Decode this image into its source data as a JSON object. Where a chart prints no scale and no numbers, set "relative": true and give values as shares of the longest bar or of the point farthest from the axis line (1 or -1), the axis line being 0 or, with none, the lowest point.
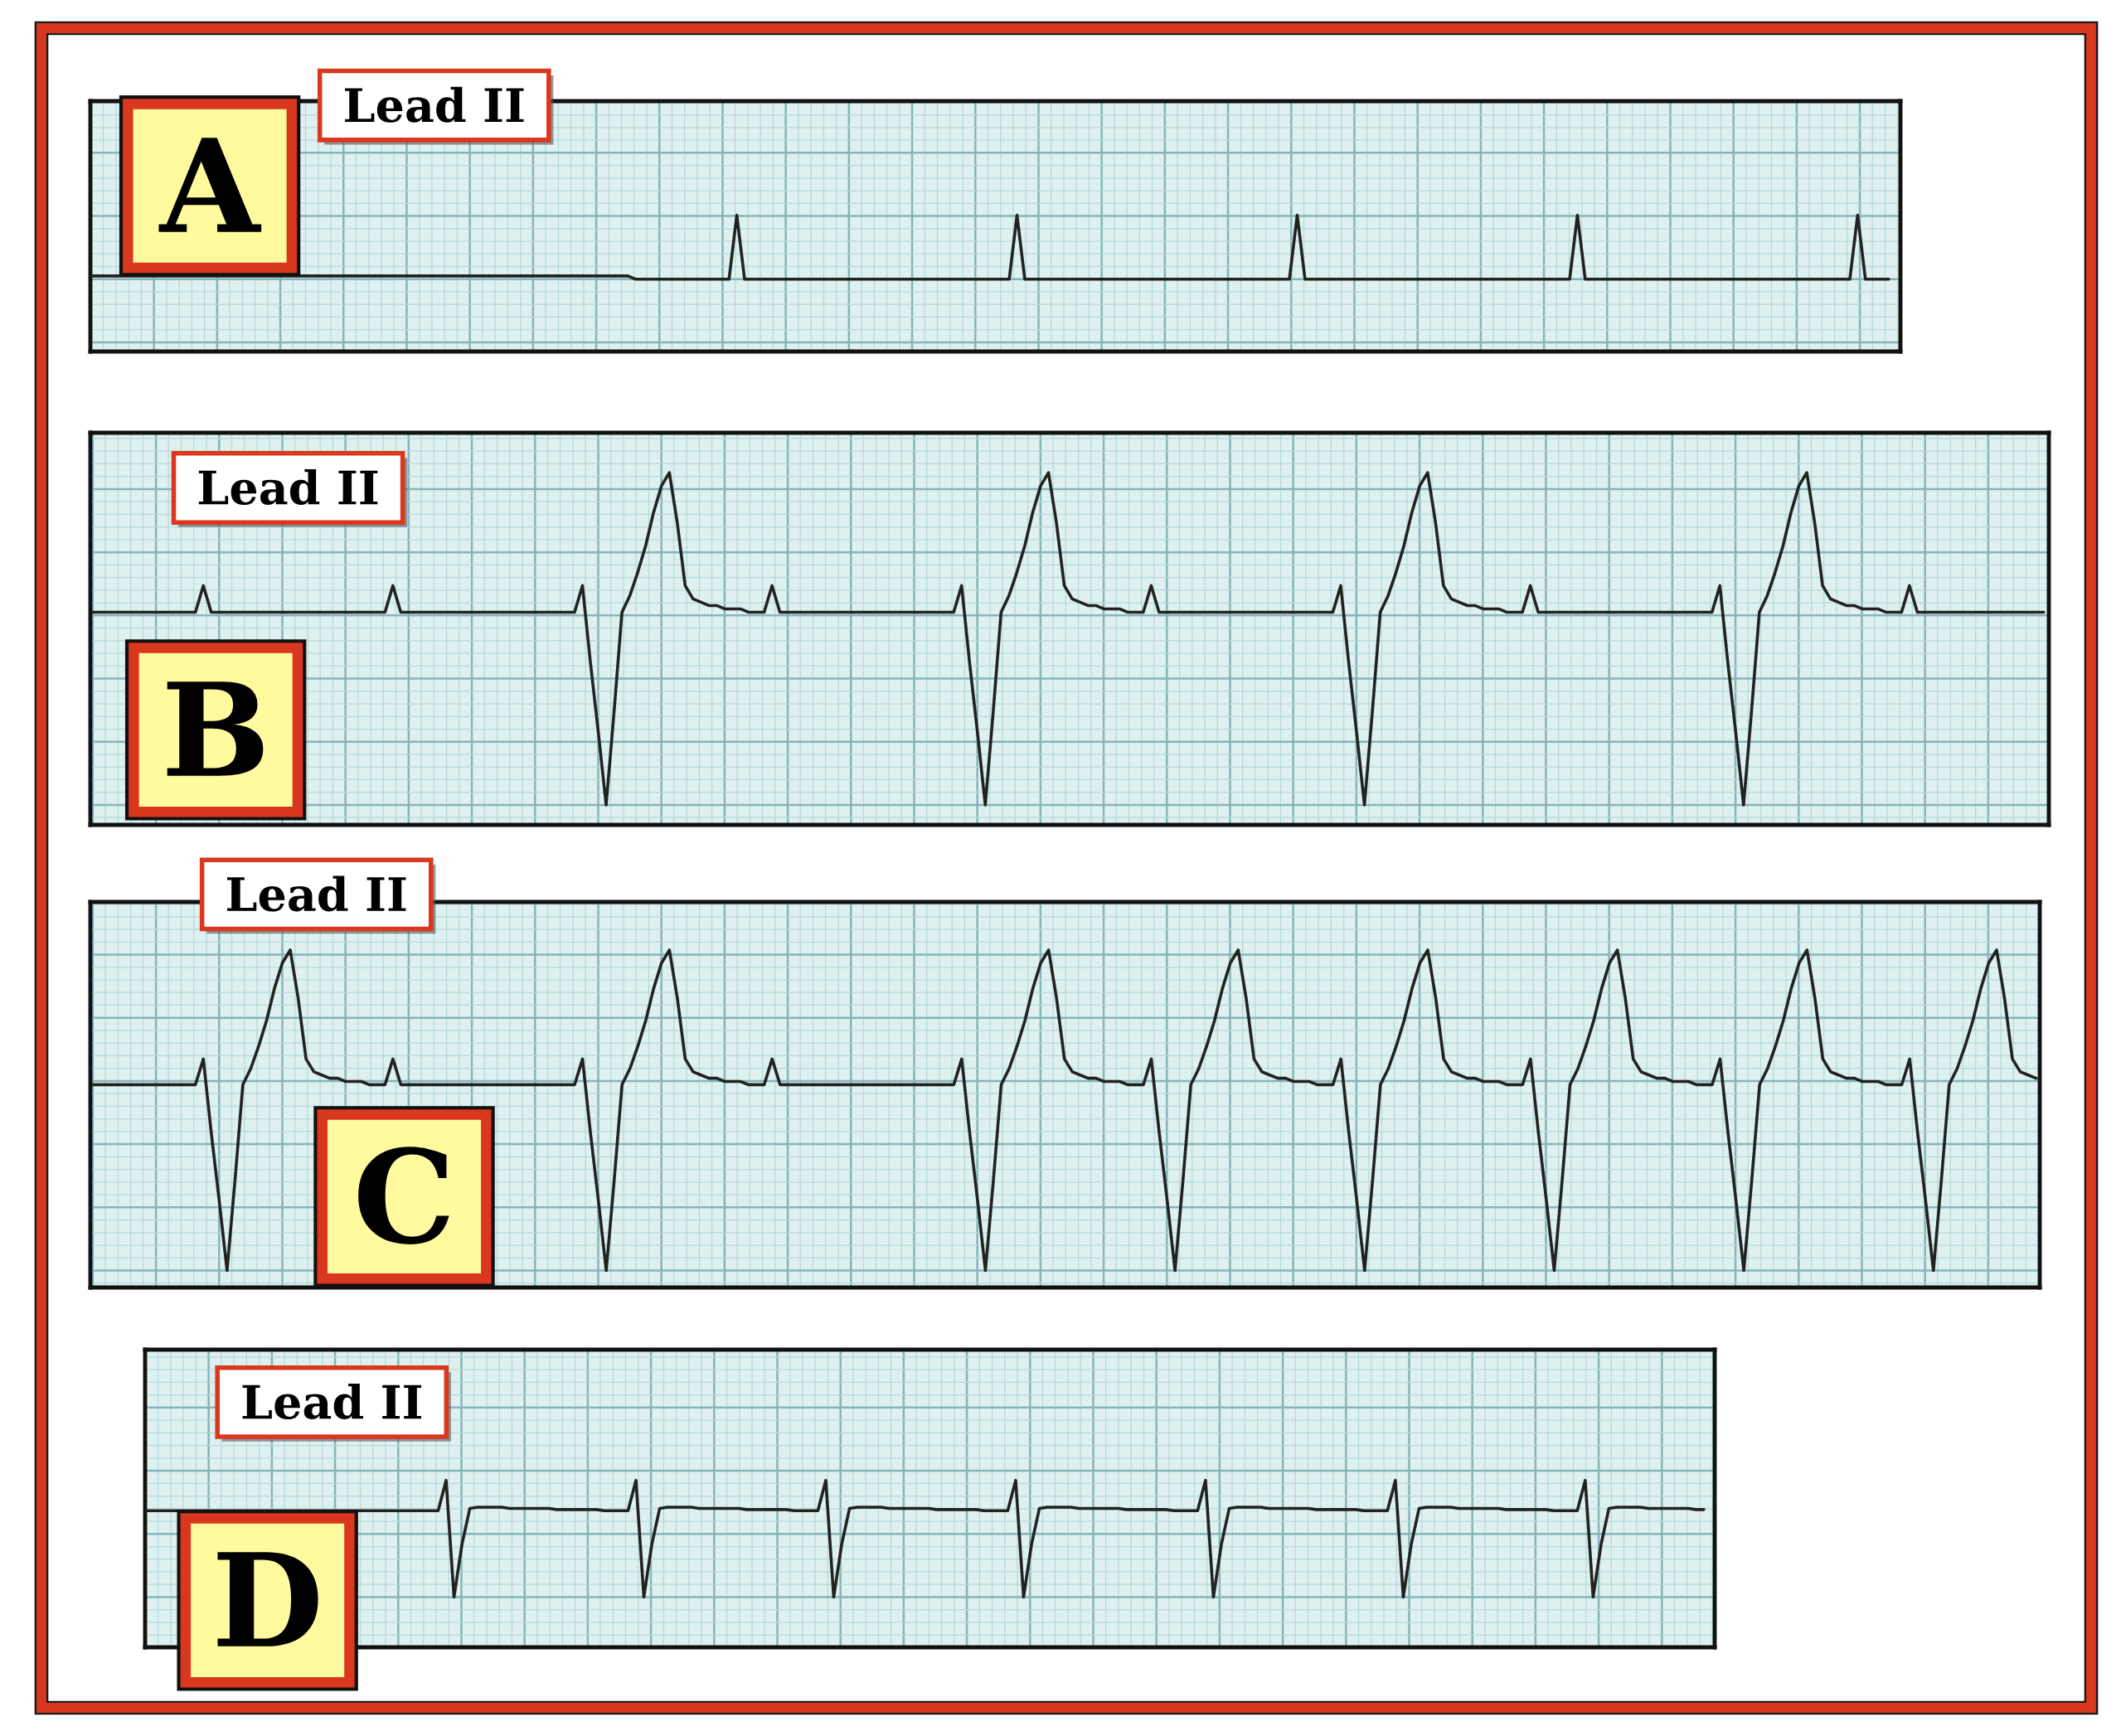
{
  "chart_data": [
    {
      "type": "line",
      "title": "Lead II",
      "annotations": [
        "A"
      ],
      "relative": true,
      "grid": true,
      "categories": [
        null,
        null,
        null,
        null,
        null,
        null,
        null,
        null,
        null,
        null,
        null,
        null,
        null,
        null,
        null,
        null,
        null,
        null,
        null,
        null,
        null,
        null,
        null,
        null,
        null,
        null,
        null,
        null,
        null,
        null,
        null,
        null,
        null,
        null,
        null,
        null,
        null,
        null,
        null,
        null,
        null,
        null,
        null,
        null,
        null,
        null,
        null,
        null,
        null,
        null,
        null,
        null,
        null,
        null,
        null,
        null,
        null,
        null,
        null,
        null,
        null,
        null,
        null,
        null,
        null,
        null,
        null,
        null,
        null,
        null,
        null,
        null,
        null,
        null,
        null,
        null,
        null,
        null,
        null,
        null,
        null,
        null,
        null,
        null,
        null,
        null,
        null,
        null,
        null,
        null,
        null,
        null,
        null,
        null,
        null,
        null,
        null,
        null,
        null,
        null,
        null,
        null,
        null,
        null,
        null,
        null,
        null,
        null,
        null,
        null,
        null,
        null,
        null,
        null,
        null,
        null,
        null,
        null,
        null,
        null,
        null,
        null,
        null,
        null,
        null,
        null,
        null,
        null,
        null,
        null,
        null,
        null,
        null,
        null,
        null,
        null,
        null,
        null,
        null,
        null,
        null,
        null,
        null,
        null,
        null,
        null,
        null,
        null,
        null,
        null,
        null,
        null,
        null,
        null,
        null,
        null,
        null,
        null,
        null,
        null,
        null,
        null,
        null,
        null,
        null,
        null,
        null,
        null,
        null,
        null,
        null,
        null,
        null,
        null,
        null,
        null,
        null,
        null,
        null,
        null,
        null,
        null,
        null,
        null,
        null,
        null,
        null,
        null,
        null,
        null,
        null,
        null,
        null,
        null,
        null,
        null,
        null,
        null,
        null,
        null,
        null,
        null,
        null,
        null,
        null,
        null,
        null,
        null,
        null,
        null,
        null,
        null,
        null,
        null,
        null,
        null,
        null,
        null,
        null,
        null,
        null,
        null,
        null,
        null,
        null,
        null,
        null,
        null,
        null,
        null,
        null,
        null
      ],
      "series": [
        {
          "color": "#222222",
          "values": [
            0.05,
            0.05,
            0.05,
            0.05,
            0.05,
            0.05,
            0.05,
            0.05,
            0.05,
            0.05,
            0.05,
            0.05,
            0.05,
            0.05,
            0.05,
            0.05,
            0.05,
            0.05,
            0.05,
            0.05,
            0.05,
            0.05,
            0.05,
            0.05,
            0.05,
            0.05,
            0.05,
            0.05,
            0.05,
            0.05,
            0.05,
            0.05,
            0.05,
            0.05,
            0.05,
            0.05,
            0.05,
            0.05,
            0.05,
            0.05,
            0.05,
            0.05,
            0.05,
            0.05,
            0.05,
            0.05,
            0.05,
            0.05,
            0.05,
            0.05,
            0.05,
            0.05,
            0.05,
            0.05,
            0.05,
            0.05,
            0.05,
            0.05,
            0.05,
            0.05,
            0.05,
            0.05,
            0.05,
            0.05,
            0.05,
            0.05,
            0.05,
            0.05,
            0.05,
            0.05,
            0,
            0,
            0,
            0,
            0,
            0,
            0,
            0,
            0,
            0,
            0,
            0,
            0,
            1,
            0,
            0,
            0,
            0,
            0,
            0,
            0,
            0,
            0,
            0,
            0,
            0,
            0,
            0,
            0,
            0,
            0,
            0,
            0,
            0,
            0,
            0,
            0,
            0,
            0,
            0,
            0,
            0,
            0,
            0,
            0,
            0,
            0,
            0,
            0,
            1,
            0,
            0,
            0,
            0,
            0,
            0,
            0,
            0,
            0,
            0,
            0,
            0,
            0,
            0,
            0,
            0,
            0,
            0,
            0,
            0,
            0,
            0,
            0,
            0,
            0,
            0,
            0,
            0,
            0,
            0,
            0,
            0,
            0,
            0,
            0,
            1,
            0,
            0,
            0,
            0,
            0,
            0,
            0,
            0,
            0,
            0,
            0,
            0,
            0,
            0,
            0,
            0,
            0,
            0,
            0,
            0,
            0,
            0,
            0,
            0,
            0,
            0,
            0,
            0,
            0,
            0,
            0,
            0,
            0,
            0,
            0,
            1,
            0,
            0,
            0,
            0,
            0,
            0,
            0,
            0,
            0,
            0,
            0,
            0,
            0,
            0,
            0,
            0,
            0,
            0,
            0,
            0,
            0,
            0,
            0,
            0,
            0,
            0,
            0,
            0,
            0,
            0,
            0,
            0,
            0,
            0,
            0,
            1,
            0,
            0,
            0,
            0
          ]
        }
      ]
    },
    {
      "type": "line",
      "title": "Lead II",
      "annotations": [
        "B"
      ],
      "relative": true,
      "grid": true,
      "categories": [
        null,
        null,
        null,
        null,
        null,
        null,
        null,
        null,
        null,
        null,
        null,
        null,
        null,
        null,
        null,
        null,
        null,
        null,
        null,
        null,
        null,
        null,
        null,
        null,
        null,
        null,
        null,
        null,
        null,
        null,
        null,
        null,
        null,
        null,
        null,
        null,
        null,
        null,
        null,
        null,
        null,
        null,
        null,
        null,
        null,
        null,
        null,
        null,
        null,
        null,
        null,
        null,
        null,
        null,
        null,
        null,
        null,
        null,
        null,
        null,
        null,
        null,
        null,
        null,
        null,
        null,
        null,
        null,
        null,
        null,
        null,
        null,
        null,
        null,
        null,
        null,
        null,
        null,
        null,
        null,
        null,
        null,
        null,
        null,
        null,
        null,
        null,
        null,
        null,
        null,
        null,
        null,
        null,
        null,
        null,
        null,
        null,
        null,
        null,
        null,
        null,
        null,
        null,
        null,
        null,
        null,
        null,
        null,
        null,
        null,
        null,
        null,
        null,
        null,
        null,
        null,
        null,
        null,
        null,
        null,
        null,
        null,
        null,
        null,
        null,
        null,
        null,
        null,
        null,
        null,
        null,
        null,
        null,
        null,
        null,
        null,
        null,
        null,
        null,
        null,
        null,
        null,
        null,
        null,
        null,
        null,
        null,
        null,
        null,
        null,
        null,
        null,
        null,
        null,
        null,
        null,
        null,
        null,
        null,
        null,
        null,
        null,
        null,
        null,
        null,
        null,
        null,
        null,
        null,
        null,
        null,
        null,
        null,
        null,
        null,
        null,
        null,
        null,
        null,
        null,
        null,
        null,
        null,
        null,
        null,
        null,
        null,
        null,
        null,
        null,
        null,
        null,
        null,
        null,
        null,
        null,
        null,
        null,
        null,
        null,
        null,
        null,
        null,
        null,
        null,
        null,
        null,
        null,
        null,
        null,
        null,
        null,
        null,
        null,
        null,
        null,
        null,
        null,
        null,
        null,
        null,
        null,
        null,
        null,
        null,
        null,
        null,
        null,
        null,
        null,
        null,
        null,
        null,
        null,
        null,
        null,
        null,
        null,
        null,
        null,
        null,
        null,
        null,
        null,
        null,
        null,
        null,
        null
      ],
      "series": [
        {
          "color": "#222222",
          "values": [
            0.58,
            0.58,
            0.58,
            0.58,
            0.58,
            0.58,
            0.58,
            0.58,
            0.58,
            0.58,
            0.58,
            0.58,
            0.58,
            0.58,
            0.66,
            0.58,
            0.58,
            0.58,
            0.58,
            0.58,
            0.58,
            0.58,
            0.58,
            0.58,
            0.58,
            0.58,
            0.58,
            0.58,
            0.58,
            0.58,
            0.58,
            0.58,
            0.58,
            0.58,
            0.58,
            0.58,
            0.58,
            0.58,
            0.66,
            0.58,
            0.58,
            0.58,
            0.58,
            0.58,
            0.58,
            0.58,
            0.58,
            0.58,
            0.58,
            0.58,
            0.58,
            0.58,
            0.58,
            0.58,
            0.58,
            0.58,
            0.58,
            0.58,
            0.58,
            0.58,
            0.58,
            0.58,
            0.66,
            0.43,
            0.22,
            0,
            0.28,
            0.58,
            0.63,
            0.7,
            0.78,
            0.88,
            0.96,
            1,
            0.85,
            0.66,
            0.62,
            0.61,
            0.6,
            0.6,
            0.59,
            0.59,
            0.59,
            0.58,
            0.58,
            0.58,
            0.66,
            0.58,
            0.58,
            0.58,
            0.58,
            0.58,
            0.58,
            0.58,
            0.58,
            0.58,
            0.58,
            0.58,
            0.58,
            0.58,
            0.58,
            0.58,
            0.58,
            0.58,
            0.58,
            0.58,
            0.58,
            0.58,
            0.58,
            0.58,
            0.66,
            0.43,
            0.22,
            0,
            0.28,
            0.58,
            0.63,
            0.7,
            0.78,
            0.88,
            0.96,
            1,
            0.85,
            0.66,
            0.62,
            0.61,
            0.6,
            0.6,
            0.59,
            0.59,
            0.59,
            0.58,
            0.58,
            0.58,
            0.66,
            0.58,
            0.58,
            0.58,
            0.58,
            0.58,
            0.58,
            0.58,
            0.58,
            0.58,
            0.58,
            0.58,
            0.58,
            0.58,
            0.58,
            0.58,
            0.58,
            0.58,
            0.58,
            0.58,
            0.58,
            0.58,
            0.58,
            0.58,
            0.66,
            0.43,
            0.22,
            0,
            0.28,
            0.58,
            0.63,
            0.7,
            0.78,
            0.88,
            0.96,
            1,
            0.85,
            0.66,
            0.62,
            0.61,
            0.6,
            0.6,
            0.59,
            0.59,
            0.59,
            0.58,
            0.58,
            0.58,
            0.66,
            0.58,
            0.58,
            0.58,
            0.58,
            0.58,
            0.58,
            0.58,
            0.58,
            0.58,
            0.58,
            0.58,
            0.58,
            0.58,
            0.58,
            0.58,
            0.58,
            0.58,
            0.58,
            0.58,
            0.58,
            0.58,
            0.58,
            0.58,
            0.66,
            0.43,
            0.22,
            0,
            0.28,
            0.58,
            0.63,
            0.7,
            0.78,
            0.88,
            0.96,
            1,
            0.85,
            0.66,
            0.62,
            0.61,
            0.6,
            0.6,
            0.59,
            0.59,
            0.59,
            0.58,
            0.58,
            0.58,
            0.66,
            0.58,
            0.58,
            0.58,
            0.58,
            0.58,
            0.58,
            0.58,
            0.58,
            0.58,
            0.58,
            0.58,
            0.58,
            0.58,
            0.58,
            0.58,
            0.58,
            0.58
          ]
        }
      ]
    },
    {
      "type": "line",
      "title": "Lead II",
      "annotations": [
        "C"
      ],
      "relative": true,
      "grid": true,
      "categories": [
        null,
        null,
        null,
        null,
        null,
        null,
        null,
        null,
        null,
        null,
        null,
        null,
        null,
        null,
        null,
        null,
        null,
        null,
        null,
        null,
        null,
        null,
        null,
        null,
        null,
        null,
        null,
        null,
        null,
        null,
        null,
        null,
        null,
        null,
        null,
        null,
        null,
        null,
        null,
        null,
        null,
        null,
        null,
        null,
        null,
        null,
        null,
        null,
        null,
        null,
        null,
        null,
        null,
        null,
        null,
        null,
        null,
        null,
        null,
        null,
        null,
        null,
        null,
        null,
        null,
        null,
        null,
        null,
        null,
        null,
        null,
        null,
        null,
        null,
        null,
        null,
        null,
        null,
        null,
        null,
        null,
        null,
        null,
        null,
        null,
        null,
        null,
        null,
        null,
        null,
        null,
        null,
        null,
        null,
        null,
        null,
        null,
        null,
        null,
        null,
        null,
        null,
        null,
        null,
        null,
        null,
        null,
        null,
        null,
        null,
        null,
        null,
        null,
        null,
        null,
        null,
        null,
        null,
        null,
        null,
        null,
        null,
        null,
        null,
        null,
        null,
        null,
        null,
        null,
        null,
        null,
        null,
        null,
        null,
        null,
        null,
        null,
        null,
        null,
        null,
        null,
        null,
        null,
        null,
        null,
        null,
        null,
        null,
        null,
        null,
        null,
        null,
        null,
        null,
        null,
        null,
        null,
        null,
        null,
        null,
        null,
        null,
        null,
        null,
        null,
        null,
        null,
        null,
        null,
        null,
        null,
        null,
        null,
        null,
        null,
        null,
        null,
        null,
        null,
        null,
        null,
        null,
        null,
        null,
        null,
        null,
        null,
        null,
        null,
        null,
        null,
        null,
        null,
        null,
        null,
        null,
        null,
        null,
        null,
        null,
        null,
        null,
        null,
        null,
        null,
        null,
        null,
        null,
        null,
        null,
        null,
        null,
        null,
        null,
        null,
        null,
        null,
        null,
        null,
        null,
        null,
        null,
        null,
        null,
        null,
        null,
        null,
        null,
        null,
        null,
        null,
        null,
        null,
        null,
        null,
        null,
        null,
        null,
        null,
        null,
        null,
        null,
        null,
        null,
        null,
        null,
        null
      ],
      "series": [
        {
          "color": "#222222",
          "values": [
            0.58,
            0.58,
            0.58,
            0.58,
            0.58,
            0.58,
            0.58,
            0.58,
            0.58,
            0.58,
            0.58,
            0.58,
            0.58,
            0.58,
            0.66,
            0.43,
            0.22,
            0,
            0.28,
            0.58,
            0.63,
            0.7,
            0.78,
            0.88,
            0.96,
            1,
            0.85,
            0.66,
            0.62,
            0.61,
            0.6,
            0.6,
            0.59,
            0.59,
            0.59,
            0.58,
            0.58,
            0.58,
            0.66,
            0.58,
            0.58,
            0.58,
            0.58,
            0.58,
            0.58,
            0.58,
            0.58,
            0.58,
            0.58,
            0.58,
            0.58,
            0.58,
            0.58,
            0.58,
            0.58,
            0.58,
            0.58,
            0.58,
            0.58,
            0.58,
            0.58,
            0.58,
            0.66,
            0.43,
            0.22,
            0,
            0.28,
            0.58,
            0.63,
            0.7,
            0.78,
            0.88,
            0.96,
            1,
            0.85,
            0.66,
            0.62,
            0.61,
            0.6,
            0.6,
            0.59,
            0.59,
            0.59,
            0.58,
            0.58,
            0.58,
            0.66,
            0.58,
            0.58,
            0.58,
            0.58,
            0.58,
            0.58,
            0.58,
            0.58,
            0.58,
            0.58,
            0.58,
            0.58,
            0.58,
            0.58,
            0.58,
            0.58,
            0.58,
            0.58,
            0.58,
            0.58,
            0.58,
            0.58,
            0.58,
            0.66,
            0.43,
            0.22,
            0,
            0.28,
            0.58,
            0.63,
            0.7,
            0.78,
            0.88,
            0.96,
            1,
            0.85,
            0.66,
            0.62,
            0.61,
            0.6,
            0.6,
            0.59,
            0.59,
            0.59,
            0.58,
            0.58,
            0.58,
            0.66,
            0.43,
            0.22,
            0,
            0.28,
            0.58,
            0.63,
            0.7,
            0.78,
            0.88,
            0.96,
            1,
            0.85,
            0.66,
            0.62,
            0.61,
            0.6,
            0.6,
            0.59,
            0.59,
            0.59,
            0.58,
            0.58,
            0.58,
            0.66,
            0.43,
            0.22,
            0,
            0.28,
            0.58,
            0.63,
            0.7,
            0.78,
            0.88,
            0.96,
            1,
            0.85,
            0.66,
            0.62,
            0.61,
            0.6,
            0.6,
            0.59,
            0.59,
            0.59,
            0.58,
            0.58,
            0.58,
            0.66,
            0.43,
            0.22,
            0,
            0.28,
            0.58,
            0.63,
            0.7,
            0.78,
            0.88,
            0.96,
            1,
            0.85,
            0.66,
            0.62,
            0.61,
            0.6,
            0.6,
            0.59,
            0.59,
            0.59,
            0.58,
            0.58,
            0.58,
            0.66,
            0.43,
            0.22,
            0,
            0.28,
            0.58,
            0.63,
            0.7,
            0.78,
            0.88,
            0.96,
            1,
            0.85,
            0.66,
            0.62,
            0.61,
            0.6,
            0.6,
            0.59,
            0.59,
            0.59,
            0.58,
            0.58,
            0.58,
            0.66,
            0.43,
            0.22,
            0,
            0.28,
            0.58,
            0.63,
            0.7,
            0.78,
            0.88,
            0.96,
            1,
            0.85,
            0.66,
            0.62,
            0.61,
            0.6
          ]
        }
      ]
    },
    {
      "type": "line",
      "title": "Lead II",
      "annotations": [
        "D"
      ],
      "relative": true,
      "grid": true,
      "categories": [
        null,
        null,
        null,
        null,
        null,
        null,
        null,
        null,
        null,
        null,
        null,
        null,
        null,
        null,
        null,
        null,
        null,
        null,
        null,
        null,
        null,
        null,
        null,
        null,
        null,
        null,
        null,
        null,
        null,
        null,
        null,
        null,
        null,
        null,
        null,
        null,
        null,
        null,
        null,
        null,
        null,
        null,
        null,
        null,
        null,
        null,
        null,
        null,
        null,
        null,
        null,
        null,
        null,
        null,
        null,
        null,
        null,
        null,
        null,
        null,
        null,
        null,
        null,
        null,
        null,
        null,
        null,
        null,
        null,
        null,
        null,
        null,
        null,
        null,
        null,
        null,
        null,
        null,
        null,
        null,
        null,
        null,
        null,
        null,
        null,
        null,
        null,
        null,
        null,
        null,
        null,
        null,
        null,
        null,
        null,
        null,
        null,
        null,
        null,
        null,
        null,
        null,
        null,
        null,
        null,
        null,
        null,
        null,
        null,
        null,
        null,
        null,
        null,
        null,
        null,
        null,
        null,
        null,
        null,
        null,
        null,
        null,
        null,
        null,
        null,
        null,
        null,
        null,
        null,
        null,
        null,
        null,
        null,
        null,
        null,
        null,
        null,
        null,
        null,
        null,
        null,
        null,
        null,
        null,
        null,
        null,
        null,
        null,
        null,
        null,
        null,
        null,
        null,
        null,
        null,
        null,
        null,
        null,
        null,
        null,
        null,
        null,
        null,
        null,
        null,
        null,
        null,
        null,
        null,
        null,
        null,
        null,
        null,
        null,
        null,
        null,
        null,
        null,
        null,
        null,
        null,
        null,
        null,
        null,
        null,
        null,
        null,
        null,
        null,
        null,
        null,
        null,
        null,
        null,
        null,
        null,
        null,
        null
      ],
      "series": [
        {
          "color": "#222222",
          "values": [
            0.74,
            0.74,
            0.74,
            0.74,
            0.74,
            0.74,
            0.74,
            0.74,
            0.74,
            0.74,
            0.74,
            0.74,
            0.74,
            0.74,
            0.74,
            0.74,
            0.74,
            0.74,
            0.74,
            0.74,
            0.74,
            0.74,
            0.74,
            0.74,
            0.74,
            0.74,
            0.74,
            0.74,
            0.74,
            0.74,
            0.74,
            0.74,
            0.74,
            0.74,
            0.74,
            0.74,
            0.74,
            0.74,
            1,
            0,
            0.45,
            0.76,
            0.77,
            0.77,
            0.77,
            0.77,
            0.76,
            0.76,
            0.76,
            0.76,
            0.76,
            0.76,
            0.75,
            0.75,
            0.75,
            0.75,
            0.75,
            0.75,
            0.74,
            0.74,
            0.74,
            0.74,
            1,
            0,
            0.45,
            0.76,
            0.77,
            0.77,
            0.77,
            0.77,
            0.76,
            0.76,
            0.76,
            0.76,
            0.76,
            0.76,
            0.75,
            0.75,
            0.75,
            0.75,
            0.75,
            0.75,
            0.74,
            0.74,
            0.74,
            0.74,
            1,
            0,
            0.45,
            0.76,
            0.77,
            0.77,
            0.77,
            0.77,
            0.76,
            0.76,
            0.76,
            0.76,
            0.76,
            0.76,
            0.75,
            0.75,
            0.75,
            0.75,
            0.75,
            0.75,
            0.74,
            0.74,
            0.74,
            0.74,
            1,
            0,
            0.45,
            0.76,
            0.77,
            0.77,
            0.77,
            0.77,
            0.76,
            0.76,
            0.76,
            0.76,
            0.76,
            0.76,
            0.75,
            0.75,
            0.75,
            0.75,
            0.75,
            0.75,
            0.74,
            0.74,
            0.74,
            0.74,
            1,
            0,
            0.45,
            0.76,
            0.77,
            0.77,
            0.77,
            0.77,
            0.76,
            0.76,
            0.76,
            0.76,
            0.76,
            0.76,
            0.75,
            0.75,
            0.75,
            0.75,
            0.75,
            0.75,
            0.74,
            0.74,
            0.74,
            0.74,
            1,
            0,
            0.45,
            0.76,
            0.77,
            0.77,
            0.77,
            0.77,
            0.76,
            0.76,
            0.76,
            0.76,
            0.76,
            0.76,
            0.75,
            0.75,
            0.75,
            0.75,
            0.75,
            0.75,
            0.74,
            0.74,
            0.74,
            0.74,
            1,
            0,
            0.45,
            0.76,
            0.77,
            0.77,
            0.77,
            0.77,
            0.76,
            0.76,
            0.76,
            0.76,
            0.76,
            0.76,
            0.75,
            0.75
          ]
        }
      ]
    }
  ]
}
